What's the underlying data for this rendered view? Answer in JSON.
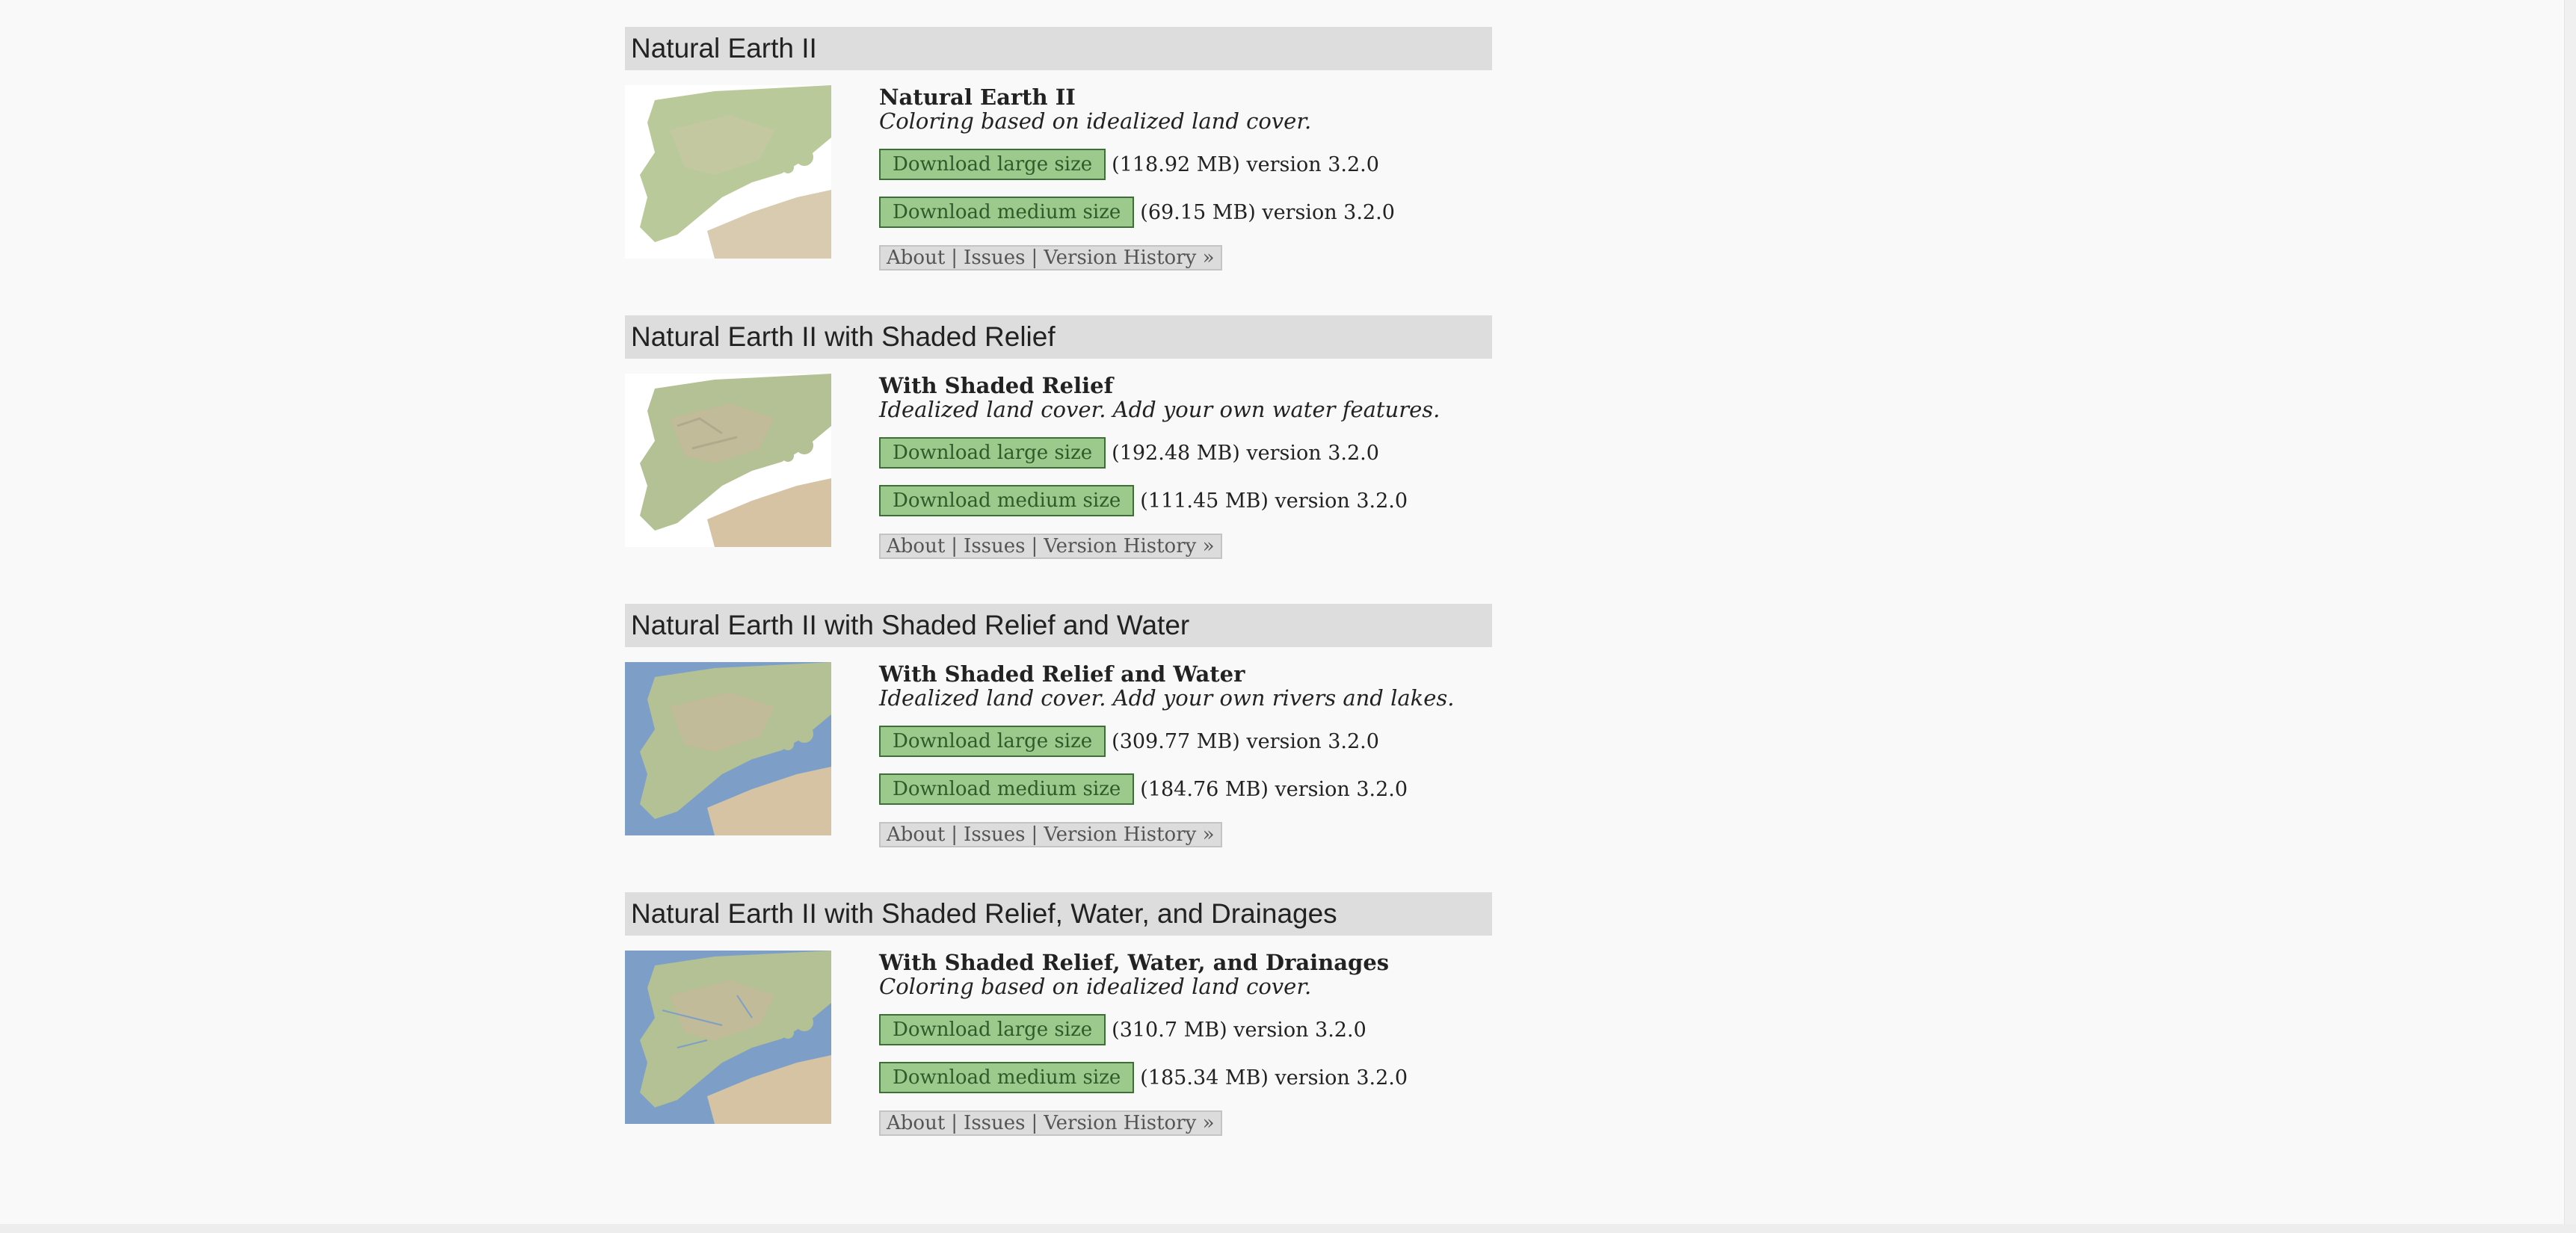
{
  "sections": [
    {
      "header": "Natural Earth II",
      "title": "Natural Earth II",
      "description": "Coloring based on idealized land cover.",
      "has_water": false,
      "large_label": "Download large size",
      "large_meta": "(118.92 MB) version 3.2.0",
      "medium_label": "Download medium size",
      "medium_meta": "(69.15 MB) version 3.2.0",
      "links": {
        "about": "About",
        "issues": "Issues",
        "history": "Version History »",
        "sep": "|"
      }
    },
    {
      "header": "Natural Earth II with Shaded Relief",
      "title": "With Shaded Relief",
      "description": "Idealized land cover. Add your own water features.",
      "has_water": false,
      "large_label": "Download large size",
      "large_meta": "(192.48 MB) version 3.2.0",
      "medium_label": "Download medium size",
      "medium_meta": "(111.45 MB) version 3.2.0",
      "links": {
        "about": "About",
        "issues": "Issues",
        "history": "Version History »",
        "sep": "|"
      }
    },
    {
      "header": "Natural Earth II with Shaded Relief and Water",
      "title": "With Shaded Relief and Water",
      "description": "Idealized land cover. Add your own rivers and lakes.",
      "has_water": true,
      "large_label": "Download large size",
      "large_meta": "(309.77 MB) version 3.2.0",
      "medium_label": "Download medium size",
      "medium_meta": "(184.76 MB) version 3.2.0",
      "links": {
        "about": "About",
        "issues": "Issues",
        "history": "Version History »",
        "sep": "|"
      }
    },
    {
      "header": "Natural Earth II with Shaded Relief, Water, and Drainages",
      "title": "With Shaded Relief, Water, and Drainages",
      "description": "Coloring based on idealized land cover.",
      "has_water": true,
      "large_label": "Download large size",
      "large_meta": "(310.7 MB) version 3.2.0",
      "medium_label": "Download medium size",
      "medium_meta": "(185.34 MB) version 3.2.0",
      "links": {
        "about": "About",
        "issues": "Issues",
        "history": "Version History »",
        "sep": "|"
      }
    }
  ]
}
